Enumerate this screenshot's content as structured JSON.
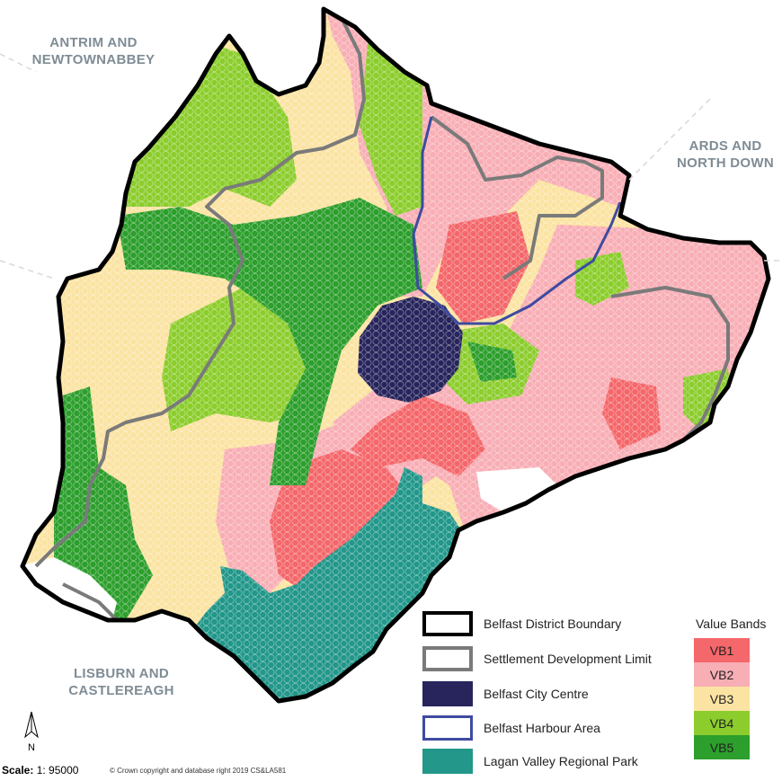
{
  "regions": {
    "antrim": [
      "ANTRIM AND",
      "NEWTOWNABBEY"
    ],
    "ards": [
      "ARDS AND",
      "NORTH DOWN"
    ],
    "lisburn": [
      "LISBURN AND",
      "CASTLEREAGH"
    ]
  },
  "legend": {
    "boundary": "Belfast District Boundary",
    "settlement": "Settlement Development Limit",
    "city_centre": "Belfast City Centre",
    "harbour": "Belfast Harbour Area",
    "lagan": "Lagan Valley Regional Park"
  },
  "value_bands": {
    "title": "Value Bands",
    "items": [
      {
        "label": "VB1",
        "color": "#f4676a"
      },
      {
        "label": "VB2",
        "color": "#f8aeb5"
      },
      {
        "label": "VB3",
        "color": "#fbe3a2"
      },
      {
        "label": "VB4",
        "color": "#8ccd2d"
      },
      {
        "label": "VB5",
        "color": "#2c9f2c"
      }
    ]
  },
  "colors": {
    "city_centre": "#27255c",
    "lagan": "#22978a",
    "harbour_line": "#3e4ba0",
    "settlement_line": "#7a7a7a",
    "boundary_line": "#000000"
  },
  "scale": {
    "label": "Scale:",
    "value": "1: 95000"
  },
  "copyright": "© Crown copyright and database right 2019 CS&LA581",
  "north": "N"
}
